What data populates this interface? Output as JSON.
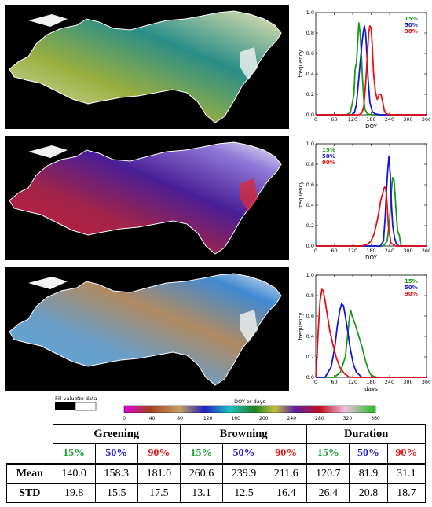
{
  "colors": {
    "pct15": "#1a9a1a",
    "pct50": "#1515e0",
    "pct90": "#e81010"
  },
  "chart_data": [
    {
      "type": "line",
      "xlabel": "DOY",
      "ylabel": "frequency",
      "xlim": [
        0,
        360
      ],
      "ylim": [
        0,
        1.0
      ],
      "xticks": [
        "0",
        "60",
        "120",
        "180",
        "240",
        "300",
        "360"
      ],
      "yticks": [
        "0.0",
        "0.2",
        "0.4",
        "0.6",
        "0.8",
        "1.0"
      ],
      "legend_position": "top-right",
      "series": [
        {
          "name": "15%",
          "color": "#1a9a1a",
          "x": [
            0,
            100,
            112,
            118,
            124,
            128,
            132,
            136,
            140,
            144,
            148,
            152,
            156,
            160,
            168,
            180,
            200,
            360
          ],
          "y": [
            0,
            0,
            0.02,
            0.1,
            0.2,
            0.45,
            0.5,
            0.7,
            0.9,
            0.8,
            0.6,
            0.35,
            0.15,
            0.05,
            0.01,
            0,
            0,
            0
          ]
        },
        {
          "name": "50%",
          "color": "#1515e0",
          "x": [
            0,
            116,
            126,
            132,
            138,
            144,
            150,
            154,
            158,
            162,
            166,
            170,
            176,
            184,
            192,
            210,
            360
          ],
          "y": [
            0,
            0,
            0.02,
            0.1,
            0.3,
            0.5,
            0.7,
            0.8,
            0.87,
            0.8,
            0.6,
            0.35,
            0.12,
            0.03,
            0.01,
            0,
            0
          ]
        },
        {
          "name": "90%",
          "color": "#e81010",
          "x": [
            0,
            140,
            150,
            156,
            162,
            168,
            172,
            176,
            180,
            184,
            188,
            194,
            200,
            206,
            212,
            218,
            222,
            226,
            230,
            240,
            360
          ],
          "y": [
            0,
            0,
            0.02,
            0.08,
            0.3,
            0.6,
            0.8,
            0.87,
            0.85,
            0.65,
            0.4,
            0.22,
            0.15,
            0.2,
            0.2,
            0.12,
            0.05,
            0.02,
            0.01,
            0,
            0
          ]
        }
      ]
    },
    {
      "type": "line",
      "xlabel": "DOY",
      "ylabel": "frequency",
      "xlim": [
        0,
        360
      ],
      "ylim": [
        0,
        1.0
      ],
      "xticks": [
        "0",
        "60",
        "120",
        "180",
        "240",
        "300",
        "360"
      ],
      "yticks": [
        "0.0",
        "0.2",
        "0.4",
        "0.6",
        "0.8",
        "1.0"
      ],
      "legend_position": "top-left",
      "series": [
        {
          "name": "15%",
          "color": "#1a9a1a",
          "x": [
            0,
            220,
            232,
            240,
            246,
            250,
            254,
            258,
            262,
            266,
            272,
            276,
            280,
            360
          ],
          "y": [
            0,
            0,
            0.05,
            0.25,
            0.55,
            0.67,
            0.65,
            0.5,
            0.3,
            0.15,
            0.1,
            0.02,
            0,
            0
          ]
        },
        {
          "name": "50%",
          "color": "#1515e0",
          "x": [
            0,
            210,
            220,
            226,
            230,
            234,
            238,
            242,
            246,
            250,
            256,
            262,
            270,
            360
          ],
          "y": [
            0,
            0,
            0.05,
            0.3,
            0.55,
            0.75,
            0.88,
            0.7,
            0.4,
            0.2,
            0.08,
            0.02,
            0,
            0
          ]
        },
        {
          "name": "90%",
          "color": "#e81010",
          "x": [
            0,
            150,
            170,
            180,
            190,
            200,
            206,
            210,
            214,
            218,
            222,
            226,
            230,
            236,
            244,
            260,
            360
          ],
          "y": [
            0,
            0,
            0.02,
            0.05,
            0.12,
            0.25,
            0.35,
            0.43,
            0.48,
            0.52,
            0.57,
            0.58,
            0.5,
            0.2,
            0.03,
            0,
            0
          ]
        }
      ]
    },
    {
      "type": "line",
      "xlabel": "days",
      "ylabel": "frequency",
      "xlim": [
        0,
        360
      ],
      "ylim": [
        0,
        1.0
      ],
      "xticks": [
        "0",
        "60",
        "120",
        "180",
        "240",
        "300",
        "360"
      ],
      "yticks": [
        "0.0",
        "0.2",
        "0.4",
        "0.6",
        "0.8",
        "1.0"
      ],
      "legend_position": "top-right",
      "series": [
        {
          "name": "15%",
          "color": "#1a9a1a",
          "x": [
            0,
            60,
            80,
            96,
            104,
            110,
            114,
            118,
            124,
            130,
            140,
            150,
            160,
            170,
            180,
            200,
            360
          ],
          "y": [
            0,
            0,
            0.05,
            0.2,
            0.42,
            0.6,
            0.65,
            0.6,
            0.55,
            0.5,
            0.4,
            0.3,
            0.18,
            0.08,
            0.02,
            0,
            0
          ]
        },
        {
          "name": "50%",
          "color": "#1515e0",
          "x": [
            0,
            30,
            50,
            62,
            70,
            78,
            84,
            90,
            96,
            104,
            112,
            122,
            132,
            150,
            360
          ],
          "y": [
            0,
            0,
            0.1,
            0.3,
            0.5,
            0.65,
            0.72,
            0.7,
            0.6,
            0.45,
            0.28,
            0.13,
            0.05,
            0,
            0
          ]
        },
        {
          "name": "90%",
          "color": "#e81010",
          "x": [
            0,
            4,
            8,
            14,
            20,
            24,
            30,
            38,
            46,
            56,
            66,
            78,
            92,
            110,
            360
          ],
          "y": [
            0,
            0.2,
            0.45,
            0.75,
            0.86,
            0.85,
            0.75,
            0.6,
            0.45,
            0.32,
            0.2,
            0.1,
            0.04,
            0,
            0
          ]
        }
      ]
    }
  ],
  "legend": {
    "fill_value": "Fill value",
    "no_data": "No data",
    "colorbar_title": "DOY or days",
    "colorbar_ticks": [
      "0",
      "40",
      "80",
      "120",
      "160",
      "200",
      "240",
      "280",
      "320",
      "360"
    ]
  },
  "table": {
    "groups": [
      "Greening",
      "Browning",
      "Duration"
    ],
    "percentiles": [
      "15%",
      "50%",
      "90%"
    ],
    "rows": [
      {
        "label": "Mean",
        "values": [
          "140.0",
          "158.3",
          "181.0",
          "260.6",
          "239.9",
          "211.6",
          "120.7",
          "81.9",
          "31.1"
        ]
      },
      {
        "label": "STD",
        "values": [
          "19.8",
          "15.5",
          "17.5",
          "13.1",
          "12.5",
          "16.4",
          "26.4",
          "20.8",
          "18.7"
        ]
      }
    ]
  }
}
